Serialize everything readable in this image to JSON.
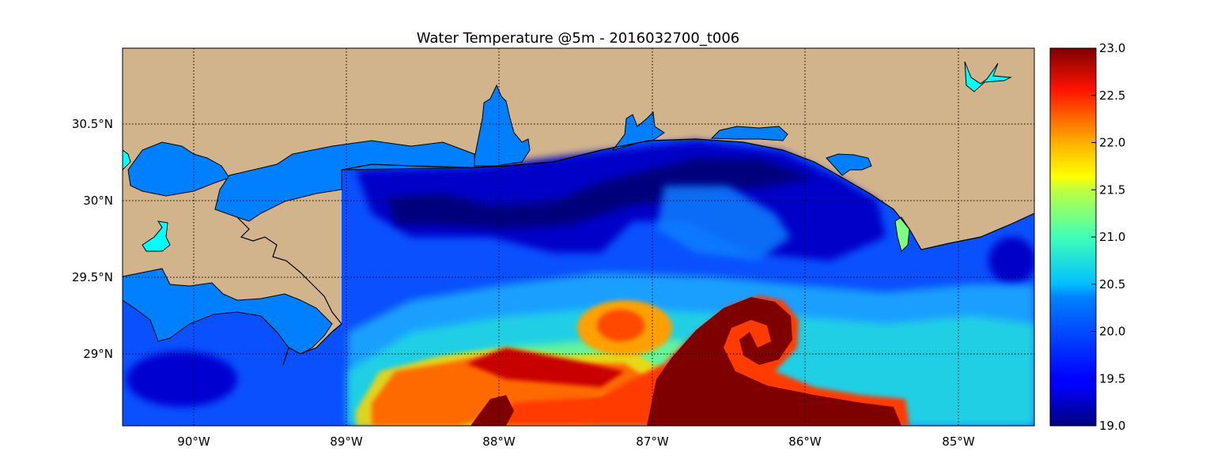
{
  "chart_data": {
    "type": "heatmap",
    "title": "Water Temperature @5m - 2016032700_t006",
    "map": {
      "lon_range": [
        -90.5,
        -84.5
      ],
      "lat_range": [
        28.55,
        31.0
      ],
      "lon_ticks": [
        {
          "value": -90,
          "label": "90°W"
        },
        {
          "value": -89,
          "label": "89°W"
        },
        {
          "value": -88,
          "label": "88°W"
        },
        {
          "value": -87,
          "label": "87°W"
        },
        {
          "value": -86,
          "label": "86°W"
        },
        {
          "value": -85,
          "label": "85°W"
        }
      ],
      "lat_ticks": [
        {
          "value": 29.0,
          "label": "29°N"
        },
        {
          "value": 29.5,
          "label": "29.5°N"
        },
        {
          "value": 30.0,
          "label": "30°N"
        },
        {
          "value": 30.5,
          "label": "30.5°N"
        }
      ],
      "grid": true,
      "land_color": "#d2b48c",
      "bay_color": "#0080ff",
      "lake_color": "#00ffff",
      "coast_color": "#000000"
    },
    "colorbar": {
      "colormap": "jet",
      "range": [
        19.0,
        23.0
      ],
      "ticks": [
        "19.0",
        "19.5",
        "20.0",
        "20.5",
        "21.0",
        "21.5",
        "22.0",
        "22.5",
        "23.0"
      ],
      "placement": "right"
    },
    "features": [
      {
        "name": "loop-current-warm-water",
        "temperature": 23.0
      },
      {
        "name": "warm-eddy",
        "temperature": 22.0
      },
      {
        "name": "nearshore-cold-band",
        "temperature": 19.3
      }
    ]
  }
}
